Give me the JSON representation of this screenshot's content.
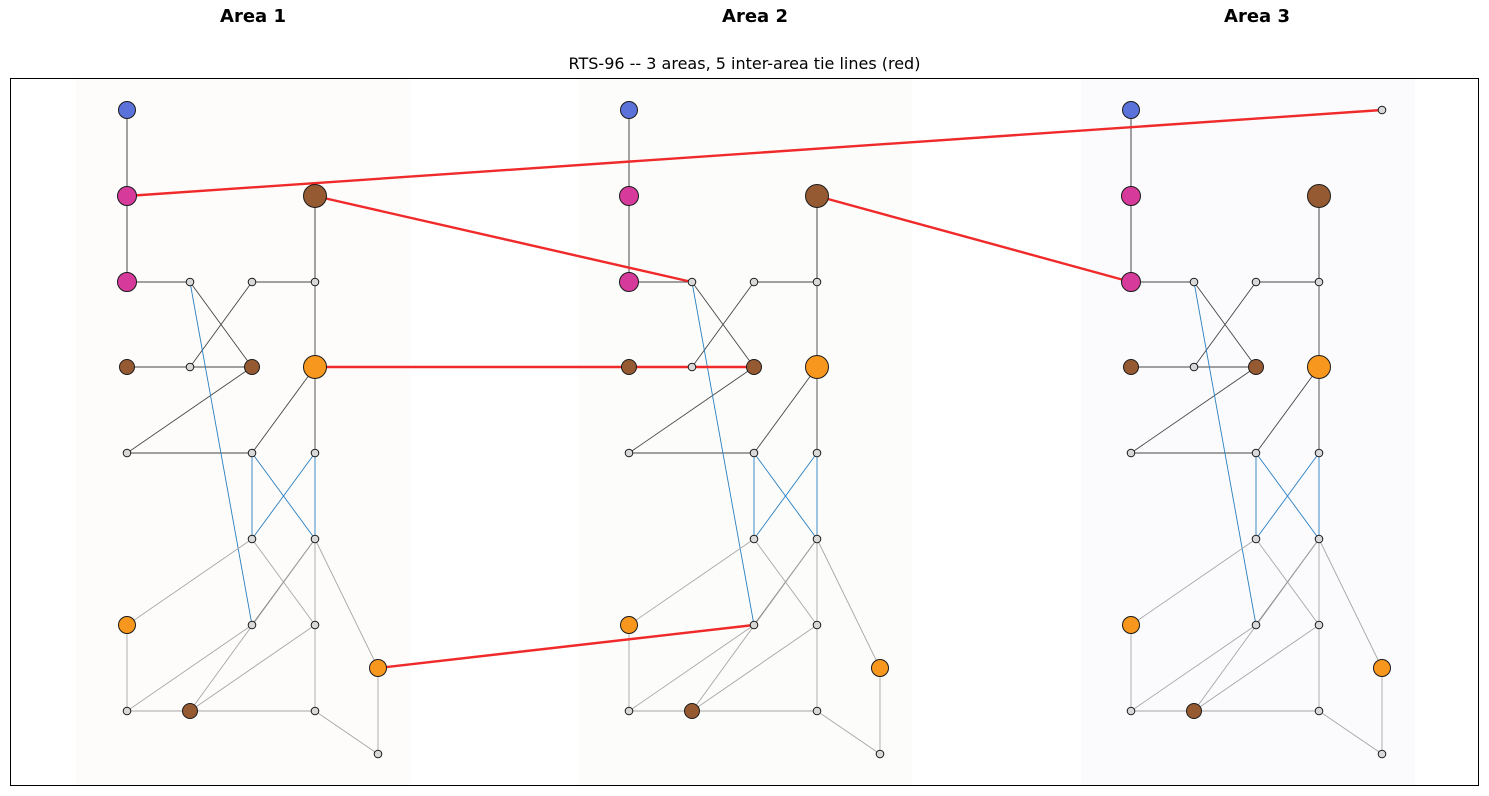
{
  "area_titles": [
    "Area 1",
    "Area 2",
    "Area 3"
  ],
  "title": "RTS-96 -- 3 areas, 5 inter-area tie lines (red)",
  "colors": {
    "area_backgrounds": [
      "#fdfcfb",
      "#fcfdfb",
      "#fbfbfe"
    ],
    "tie_line": "#f02a2a",
    "line_dark": "#444444",
    "line_light": "#a6a6a6",
    "line_blue": "#2a7fbf",
    "node_default": "#d9d9d9",
    "node_blue": "#5a72d9",
    "node_magenta": "#d63a9a",
    "node_brown": "#955a32",
    "node_orange": "#f7971d"
  },
  "diagram": {
    "area_count": 3,
    "node_types": {
      "1": "blue",
      "2": "magenta",
      "3": "magenta",
      "4": "brown",
      "5": "plain",
      "6": "plain",
      "7": "orange",
      "8": "plain",
      "9": "plain",
      "10": "plain",
      "11": "plain",
      "12": "plain",
      "13": "brown-large",
      "14": "plain",
      "15": "brown",
      "16": "plain",
      "17": "plain",
      "18": "orange",
      "19": "plain",
      "20": "plain",
      "21": "brown",
      "22": "plain",
      "23": "orange-large",
      "24": "plain"
    },
    "intra_area_lines": [
      {
        "from": "1",
        "to": "2",
        "style": "dark"
      },
      {
        "from": "1",
        "to": "3",
        "style": "dark"
      },
      {
        "from": "2",
        "to": "3",
        "style": "dark"
      },
      {
        "from": "3",
        "to": "24",
        "style": "dark"
      },
      {
        "from": "4",
        "to": "14",
        "style": "dark"
      },
      {
        "from": "4",
        "to": "15",
        "style": "dark"
      },
      {
        "from": "14",
        "to": "16",
        "style": "dark"
      },
      {
        "from": "16",
        "to": "17",
        "style": "dark"
      },
      {
        "from": "17",
        "to": "13",
        "style": "dark"
      },
      {
        "from": "13",
        "to": "23",
        "style": "dark"
      },
      {
        "from": "15",
        "to": "24",
        "style": "dark"
      },
      {
        "from": "15",
        "to": "6",
        "style": "dark"
      },
      {
        "from": "6",
        "to": "5",
        "style": "dark"
      },
      {
        "from": "5",
        "to": "23",
        "style": "dark"
      },
      {
        "from": "23",
        "to": "10",
        "style": "dark"
      },
      {
        "from": "24",
        "to": "8",
        "style": "blue"
      },
      {
        "from": "5",
        "to": "11",
        "style": "blue"
      },
      {
        "from": "10",
        "to": "12",
        "style": "blue"
      },
      {
        "from": "5",
        "to": "12",
        "style": "blue"
      },
      {
        "from": "10",
        "to": "11",
        "style": "blue"
      },
      {
        "from": "11",
        "to": "8",
        "style": "dark"
      },
      {
        "from": "12",
        "to": "7",
        "style": "light"
      },
      {
        "from": "12",
        "to": "9",
        "style": "light"
      },
      {
        "from": "11",
        "to": "21",
        "style": "light"
      },
      {
        "from": "11",
        "to": "18",
        "style": "light"
      },
      {
        "from": "11",
        "to": "20",
        "style": "light"
      },
      {
        "from": "7",
        "to": "19",
        "style": "light"
      },
      {
        "from": "8",
        "to": "19",
        "style": "light"
      },
      {
        "from": "9",
        "to": "21",
        "style": "light"
      },
      {
        "from": "19",
        "to": "21",
        "style": "light"
      },
      {
        "from": "21",
        "to": "20",
        "style": "light"
      },
      {
        "from": "20",
        "to": "22",
        "style": "light"
      },
      {
        "from": "22",
        "to": "18",
        "style": "light"
      }
    ],
    "tie_lines": [
      {
        "from_area": 1,
        "from": "2",
        "to_area": 3,
        "to": "25"
      },
      {
        "from_area": 1,
        "from": "13",
        "to_area": 2,
        "to": "24"
      },
      {
        "from_area": 2,
        "from": "13",
        "to_area": 3,
        "to": "3"
      },
      {
        "from_area": 1,
        "from": "23",
        "to_area": 2,
        "to": "15"
      },
      {
        "from_area": 1,
        "from": "18",
        "to_area": 2,
        "to": "8"
      }
    ]
  }
}
